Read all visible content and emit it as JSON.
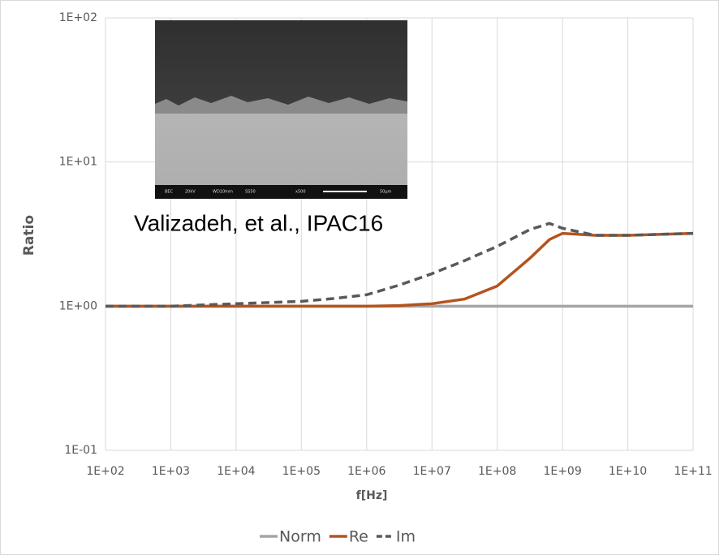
{
  "chart_data": {
    "type": "line",
    "x_label": "f[Hz]",
    "y_label": "Ratio",
    "annotation": "Valizadeh, et al., IPAC16",
    "inset_labels": [
      "BEC",
      "20kV",
      "WD10mm",
      "SS50",
      "x500",
      "50μm"
    ],
    "log_x": true,
    "log_y": true,
    "grid": true,
    "legend": "bottom",
    "x": [
      100,
      1000,
      10000,
      100000,
      316228,
      1000000,
      3162278,
      10000000,
      31622777,
      100000000,
      316227766,
      630957344,
      1000000000,
      3162277660,
      10000000000,
      100000000000
    ],
    "series": [
      {
        "name": "Norm",
        "color": "#a5a5a5",
        "dash": false,
        "values": [
          1,
          1,
          1,
          1,
          1,
          1,
          1,
          1,
          1,
          1,
          1,
          1,
          1,
          1,
          1,
          1
        ]
      },
      {
        "name": "Re",
        "color": "#b3541e",
        "dash": false,
        "values": [
          1,
          1,
          1,
          1,
          1,
          1,
          1.01,
          1.04,
          1.12,
          1.38,
          2.15,
          2.9,
          3.2,
          3.1,
          3.1,
          3.2
        ]
      },
      {
        "name": "Im",
        "color": "#595959",
        "dash": true,
        "values": [
          1,
          1,
          1.04,
          1.08,
          1.13,
          1.2,
          1.4,
          1.68,
          2.07,
          2.6,
          3.4,
          3.75,
          3.47,
          3.1,
          3.1,
          3.2
        ]
      }
    ],
    "xlim": [
      100,
      100000000000
    ],
    "ylim": [
      0.1,
      100
    ],
    "xticks": [
      {
        "value": 100,
        "label": "1E+02"
      },
      {
        "value": 1000,
        "label": "1E+03"
      },
      {
        "value": 10000,
        "label": "1E+04"
      },
      {
        "value": 100000,
        "label": "1E+05"
      },
      {
        "value": 1000000,
        "label": "1E+06"
      },
      {
        "value": 10000000,
        "label": "1E+07"
      },
      {
        "value": 100000000,
        "label": "1E+08"
      },
      {
        "value": 1000000000,
        "label": "1E+09"
      },
      {
        "value": 10000000000,
        "label": "1E+10"
      },
      {
        "value": 100000000000,
        "label": "1E+11"
      }
    ],
    "yticks": [
      {
        "value": 0.1,
        "label": "1E-01"
      },
      {
        "value": 1,
        "label": "1E+00"
      },
      {
        "value": 10,
        "label": "1E+01"
      },
      {
        "value": 100,
        "label": "1E+02"
      }
    ]
  }
}
